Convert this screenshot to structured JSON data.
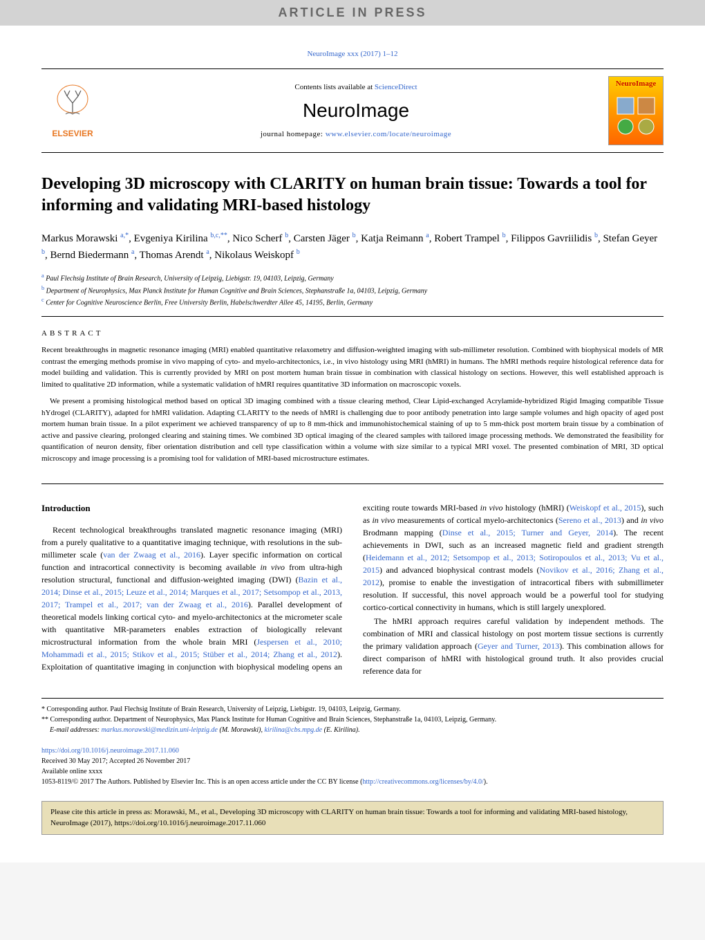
{
  "banner": {
    "text": "ARTICLE IN PRESS"
  },
  "journalRef": {
    "text": "NeuroImage xxx (2017) 1–12"
  },
  "journalHeader": {
    "publisherName": "ELSEVIER",
    "contentsPrefix": "Contents lists available at ",
    "contentsLink": "ScienceDirect",
    "title": "NeuroImage",
    "homepagePrefix": "journal homepage: ",
    "homepageLink": "www.elsevier.com/locate/neuroimage",
    "coverTitle": "NeuroImage"
  },
  "article": {
    "title": "Developing 3D microscopy with CLARITY on human brain tissue: Towards a tool for informing and validating MRI-based histology",
    "authorsHtml": "Markus Morawski <sup>a,*</sup>, Evgeniya Kirilina <sup>b,c,**</sup>, Nico Scherf <sup>b</sup>, Carsten Jäger <sup>b</sup>, Katja Reimann <sup>a</sup>, Robert Trampel <sup>b</sup>, Filippos Gavriilidis <sup>b</sup>, Stefan Geyer <sup>b</sup>, Bernd Biedermann <sup>a</sup>, Thomas Arendt <sup>a</sup>, Nikolaus Weiskopf <sup>b</sup>",
    "affiliations": {
      "a": "Paul Flechsig Institute of Brain Research, University of Leipzig, Liebigstr. 19, 04103, Leipzig, Germany",
      "b": "Department of Neurophysics, Max Planck Institute for Human Cognitive and Brain Sciences, Stephanstraße 1a, 04103, Leipzig, Germany",
      "c": "Center for Cognitive Neuroscience Berlin, Free University Berlin, Habelschwerdter Allee 45, 14195, Berlin, Germany"
    }
  },
  "abstract": {
    "heading": "ABSTRACT",
    "p1": "Recent breakthroughs in magnetic resonance imaging (MRI) enabled quantitative relaxometry and diffusion-weighted imaging with sub-millimeter resolution. Combined with biophysical models of MR contrast the emerging methods promise in vivo mapping of cyto- and myelo-architectonics, i.e., in vivo histology using MRI (hMRI) in humans. The hMRI methods require histological reference data for model building and validation. This is currently provided by MRI on post mortem human brain tissue in combination with classical histology on sections. However, this well established approach is limited to qualitative 2D information, while a systematic validation of hMRI requires quantitative 3D information on macroscopic voxels.",
    "p2": "We present a promising histological method based on optical 3D imaging combined with a tissue clearing method, Clear Lipid-exchanged Acrylamide-hybridized Rigid Imaging compatible Tissue hYdrogel (CLARITY), adapted for hMRI validation. Adapting CLARITY to the needs of hMRI is challenging due to poor antibody penetration into large sample volumes and high opacity of aged post mortem human brain tissue. In a pilot experiment we achieved transparency of up to 8 mm-thick and immunohistochemical staining of up to 5 mm-thick post mortem brain tissue by a combination of active and passive clearing, prolonged clearing and staining times. We combined 3D optical imaging of the cleared samples with tailored image processing methods. We demonstrated the feasibility for quantification of neuron density, fiber orientation distribution and cell type classification within a volume with size similar to a typical MRI voxel. The presented combination of MRI, 3D optical microscopy and image processing is a promising tool for validation of MRI-based microstructure estimates."
  },
  "intro": {
    "heading": "Introduction",
    "p1Html": "Recent technological breakthroughs translated magnetic resonance imaging (MRI) from a purely qualitative to a quantitative imaging technique, with resolutions in the sub-millimeter scale (<a>van der Zwaag et al., 2016</a>). Layer specific information on cortical function and intracortical connectivity is becoming available <span class='italic'>in vivo</span> from ultra-high resolution structural, functional and diffusion-weighted imaging (DWI) (<a>Bazin et al., 2014; Dinse et al., 2015; Leuze et al., 2014; Marques et al., 2017; Setsompop et al., 2013, 2017; Trampel et al., 2017; van der Zwaag et al., 2016</a>). Parallel development of theoretical models linking cortical cyto- and myelo-architectonics at the micrometer scale with quantitative MR-parameters enables extraction of biologically relevant microstructural information from the whole brain MRI (<a>Jespersen et al., 2010; Mohammadi et al., 2015; Stikov et al., 2015; Stüber et al., 2014; Zhang et al., 2012</a>). Exploitation of quantitative imaging in conjunction with biophysical modeling opens an exciting route towards MRI-based <span class='italic'>in vivo</span> histology (hMRI) (<a>Weiskopf et al., 2015</a>), such as <span class='italic'>in vivo</span> measurements of cortical myelo-architectonics (<a>Sereno et al., 2013</a>) and <span class='italic'>in vivo</span> Brodmann mapping (<a>Dinse et al., 2015; Turner and Geyer, 2014</a>). The recent achievements in DWI, such as an increased magnetic field and gradient strength (<a>Heidemann et al., 2012; Setsompop et al., 2013; Sotiropoulos et al., 2013; Vu et al., 2015</a>) and advanced biophysical contrast models (<a>Novikov et al., 2016; Zhang et al., 2012</a>), promise to enable the investigation of intracortical fibers with submillimeter resolution. If successful, this novel approach would be a powerful tool for studying cortico-cortical connectivity in humans, which is still largely unexplored.",
    "p2Html": "The hMRI approach requires careful validation by independent methods. The combination of MRI and classical histology on post mortem tissue sections is currently the primary validation approach (<a>Geyer and Turner, 2013</a>). This combination allows for direct comparison of hMRI with histological ground truth. It also provides crucial reference data for"
  },
  "footnotes": {
    "n1": "* Corresponding author. Paul Flechsig Institute of Brain Research, University of Leipzig, Liebigstr. 19, 04103, Leipzig, Germany.",
    "n2": "** Corresponding author. Department of Neurophysics, Max Planck Institute for Human Cognitive and Brain Sciences, Stephanstraße 1a, 04103, Leipzig, Germany.",
    "emailsLabel": "E-mail addresses: ",
    "email1": "markus.morawski@medizin.uni-leipzig.de",
    "email1Name": " (M. Morawski), ",
    "email2": "kirilina@cbs.mpg.de",
    "email2Name": " (E. Kirilina)."
  },
  "meta": {
    "doi": "https://doi.org/10.1016/j.neuroimage.2017.11.060",
    "received": "Received 30 May 2017; Accepted 26 November 2017",
    "available": "Available online xxxx",
    "copyrightPrefix": "1053-8119/© 2017 The Authors. Published by Elsevier Inc. This is an open access article under the CC BY license (",
    "licenseLink": "http://creativecommons.org/licenses/by/4.0/",
    "copyrightSuffix": ")."
  },
  "citeBox": {
    "text": "Please cite this article in press as: Morawski, M., et al., Developing 3D microscopy with CLARITY on human brain tissue: Towards a tool for informing and validating MRI-based histology, NeuroImage (2017), https://doi.org/10.1016/j.neuroimage.2017.11.060"
  },
  "colors": {
    "bannerBg": "#d3d3d3",
    "link": "#3366cc",
    "citeBg": "#e8dfb8",
    "elsevierOrange": "#E87722"
  }
}
